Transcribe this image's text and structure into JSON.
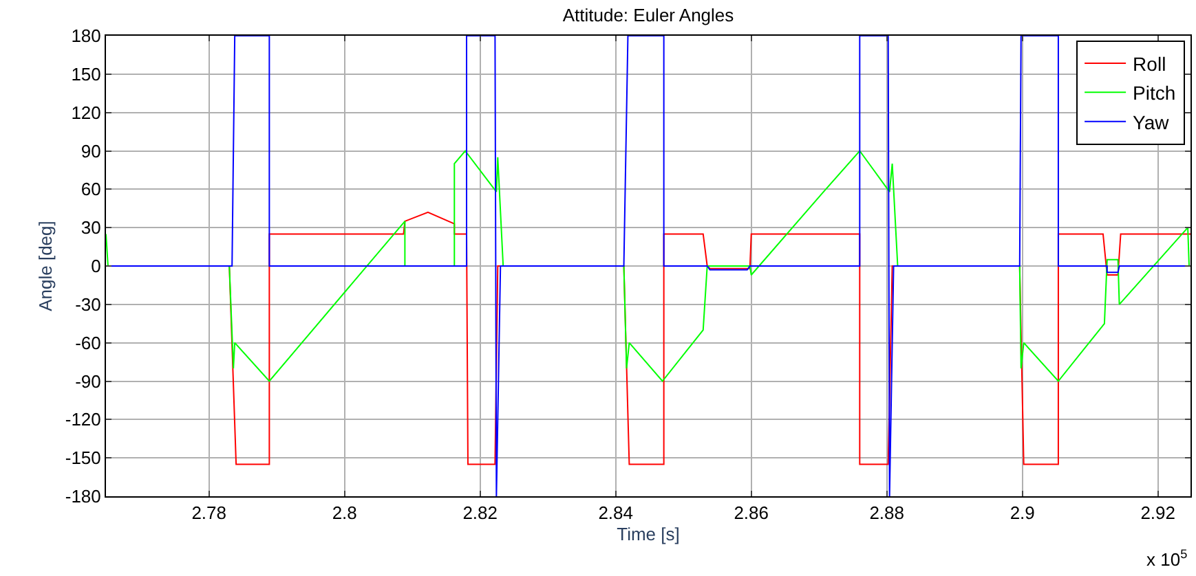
{
  "chart_data": {
    "type": "line",
    "title": "Attitude: Euler Angles",
    "xlabel": "Time [s]",
    "ylabel": "Angle [deg]",
    "annotations": [
      "x 10$^{5}$"
    ],
    "xlim": [
      2.7648,
      2.9248
    ],
    "xticks": [
      2.78,
      2.8,
      2.82,
      2.84,
      2.86,
      2.88,
      2.9,
      2.92
    ],
    "ylim": [
      -180,
      180
    ],
    "yticks": [
      -180,
      -150,
      -120,
      -90,
      -60,
      -30,
      0,
      30,
      60,
      90,
      120,
      150,
      180
    ],
    "grid": true,
    "legend": "top right",
    "line_style": "solid",
    "marker": "none",
    "series": [
      {
        "name": "Roll",
        "color": "#ff0000",
        "x": [
          2.7648,
          2.783,
          2.784,
          2.7889,
          2.7889,
          2.8087,
          2.8089,
          2.8123,
          2.8162,
          2.8162,
          2.818,
          2.8182,
          2.8222,
          2.8226,
          2.8412,
          2.842,
          2.8471,
          2.8471,
          2.8529,
          2.8535,
          2.8539,
          2.8598,
          2.86,
          2.876,
          2.876,
          2.8802,
          2.8808,
          2.8996,
          2.9002,
          2.9053,
          2.9053,
          2.9119,
          2.9125,
          2.9141,
          2.9145,
          2.9248
        ],
        "values": [
          0,
          0,
          -155,
          -155,
          25,
          25,
          35,
          42,
          33,
          25,
          25,
          -155,
          -155,
          0,
          0,
          -155,
          -155,
          25,
          25,
          0,
          -2,
          -2,
          25,
          25,
          -155,
          -155,
          0,
          0,
          -155,
          -155,
          25,
          25,
          -7,
          -7,
          25,
          25
        ]
      },
      {
        "name": "Pitch",
        "color": "#00ff00",
        "x": [
          2.7648,
          2.7651,
          2.783,
          2.7836,
          2.7838,
          2.7889,
          2.8089,
          2.8089,
          2.8162,
          2.8162,
          2.8178,
          2.8224,
          2.8226,
          2.8234,
          2.8412,
          2.8416,
          2.842,
          2.8469,
          2.8529,
          2.8535,
          2.8598,
          2.86,
          2.8705,
          2.876,
          2.8804,
          2.8808,
          2.8816,
          2.8996,
          2.8998,
          2.9002,
          2.9053,
          2.9121,
          2.9125,
          2.9141,
          2.9143,
          2.9244,
          2.9246,
          2.9248
        ],
        "values": [
          25,
          0,
          0,
          -80,
          -60,
          -90,
          35,
          0,
          0,
          80,
          90,
          58,
          85,
          0,
          0,
          -80,
          -60,
          -90,
          -50,
          0,
          0,
          -7,
          57,
          90,
          58,
          80,
          0,
          0,
          -80,
          -60,
          -90,
          -45,
          5,
          5,
          -30,
          30,
          0,
          0
        ]
      },
      {
        "name": "Yaw",
        "color": "#0000ff",
        "x": [
          2.7648,
          2.7834,
          2.7838,
          2.7889,
          2.7889,
          2.818,
          2.818,
          2.8222,
          2.8224,
          2.823,
          2.8412,
          2.8418,
          2.8471,
          2.8471,
          2.8535,
          2.8539,
          2.8594,
          2.8598,
          2.876,
          2.876,
          2.8802,
          2.8804,
          2.881,
          2.8996,
          2.8998,
          2.9053,
          2.9053,
          2.9125,
          2.9125,
          2.9141,
          2.9143,
          2.9248
        ],
        "values": [
          0,
          0,
          180,
          180,
          0,
          0,
          180,
          180,
          -180,
          0,
          0,
          180,
          180,
          0,
          0,
          -3,
          -3,
          0,
          0,
          180,
          180,
          -180,
          0,
          0,
          180,
          180,
          0,
          0,
          -5,
          -5,
          0,
          0
        ]
      }
    ]
  }
}
